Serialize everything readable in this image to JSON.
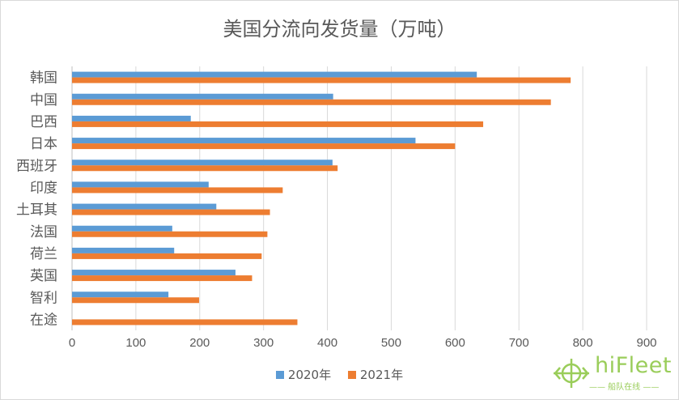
{
  "chart_data": {
    "type": "bar",
    "orientation": "horizontal",
    "title": "美国分流向发货量（万吨）",
    "categories": [
      "韩国",
      "中国",
      "巴西",
      "日本",
      "西班牙",
      "印度",
      "土耳其",
      "法国",
      "荷兰",
      "英国",
      "智利",
      "在途"
    ],
    "series": [
      {
        "name": "2020年",
        "color": "#5b9bd5",
        "values": [
          634,
          409,
          186,
          538,
          408,
          214,
          226,
          157,
          160,
          256,
          151,
          0
        ]
      },
      {
        "name": "2021年",
        "color": "#ed7d31",
        "values": [
          781,
          750,
          644,
          600,
          416,
          330,
          310,
          306,
          297,
          282,
          199,
          353
        ]
      }
    ],
    "xlim": [
      0,
      900
    ],
    "ticks": [
      "0",
      "100",
      "200",
      "300",
      "400",
      "500",
      "600",
      "700",
      "800",
      "900"
    ],
    "grid": true,
    "legend_position": "bottom"
  },
  "watermark": {
    "brand": "hiFleet",
    "tagline": "—— 船队在线 ——"
  }
}
